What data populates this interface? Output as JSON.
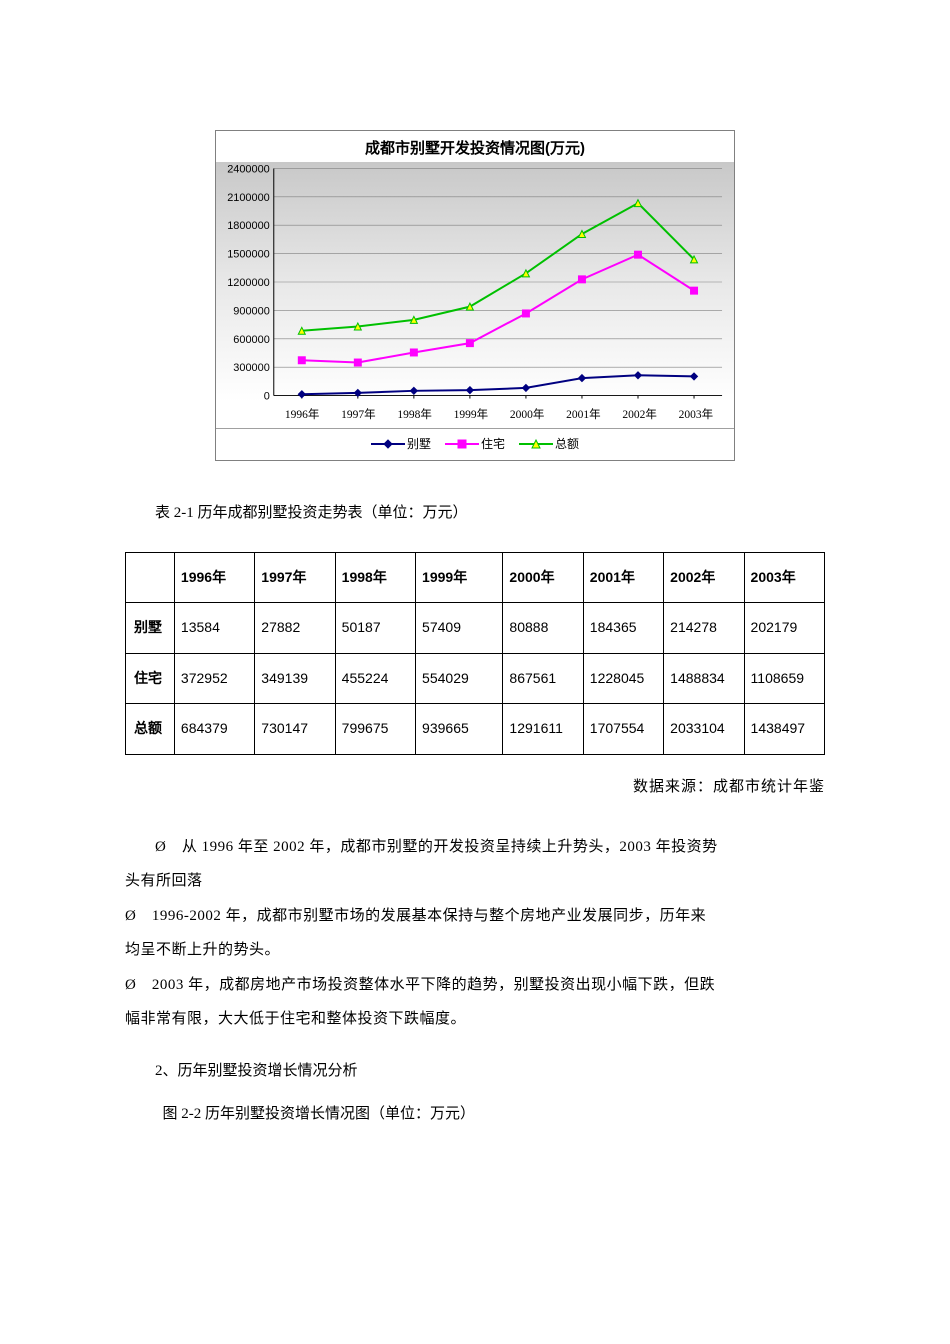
{
  "chart": {
    "type": "line",
    "title": "成都市别墅开发投资情况图(万元)",
    "title_fontsize": 15,
    "background_gradient": [
      "#c8c8c8",
      "#e8e8e8",
      "#ffffff"
    ],
    "gridline_color": "#808080",
    "axis_color": "#000000",
    "ylim": [
      0,
      2400000
    ],
    "ytick_step": 300000,
    "yticks": [
      "0",
      "300000",
      "600000",
      "900000",
      "1200000",
      "1500000",
      "1800000",
      "2100000",
      "2400000"
    ],
    "xticks": [
      "1996年",
      "1997年",
      "1998年",
      "1999年",
      "2000年",
      "2001年",
      "2002年",
      "2003年"
    ],
    "label_fontsize": 11.5,
    "line_width": 2,
    "marker_size": 7,
    "series": [
      {
        "name": "别墅",
        "color": "#000080",
        "marker": "diamond",
        "values": [
          13584,
          27882,
          50187,
          57409,
          80888,
          184365,
          214278,
          202179
        ]
      },
      {
        "name": "住宅",
        "color": "#ff00ff",
        "marker": "square",
        "values": [
          372952,
          349139,
          455224,
          554029,
          867561,
          1228045,
          1488834,
          1108659
        ]
      },
      {
        "name": "总额",
        "color": "#00c000",
        "marker": "triangle",
        "marker_fill": "#ffff00",
        "values": [
          684379,
          730147,
          799675,
          939665,
          1291611,
          1707554,
          2033104,
          1438497
        ]
      }
    ]
  },
  "table_caption": "表 2-1 历年成都别墅投资走势表（单位：万元）",
  "table": {
    "columns": [
      "",
      "1996年",
      "1997年",
      "1998年",
      "1999年",
      "2000年",
      "2001年",
      "2002年",
      "2003年"
    ],
    "col_widths_pct": [
      7,
      11.5,
      11.5,
      11.5,
      12.5,
      11.5,
      11.5,
      11.5,
      11.5
    ],
    "rows": [
      [
        "别墅",
        "13584",
        "27882",
        "50187",
        "57409",
        "80888",
        "184365",
        "214278",
        "202179"
      ],
      [
        "住宅",
        "372952",
        "349139",
        "455224",
        "554029",
        "867561",
        "1228045",
        "1488834",
        "1108659"
      ],
      [
        "总额",
        "684379",
        "730147",
        "799675",
        "939665",
        "1291611",
        "1707554",
        "2033104",
        "1438497"
      ]
    ]
  },
  "source_line": "数据来源：成都市统计年鉴",
  "paragraphs": {
    "p1a": "Ø　从 1996 年至 2002 年，成都市别墅的开发投资呈持续上升势头，2003 年投资势",
    "p1b": "头有所回落",
    "p2a": "Ø　1996-2002 年，成都市别墅市场的发展基本保持与整个房地产业发展同步，历年来",
    "p2b": "均呈不断上升的势头。",
    "p3a": "Ø　2003 年，成都房地产市场投资整体水平下降的趋势，别墅投资出现小幅下跌，但跌",
    "p3b": "幅非常有限，大大低于住宅和整体投资下跌幅度。"
  },
  "section_head": "2、历年别墅投资增长情况分析",
  "fig_caption": "图 2-2 历年别墅投资增长情况图（单位：万元）"
}
